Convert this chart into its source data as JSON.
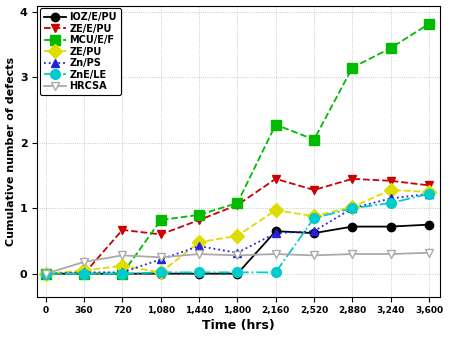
{
  "x": [
    0,
    360,
    720,
    1080,
    1440,
    1800,
    2160,
    2520,
    2880,
    3240,
    3600
  ],
  "series": {
    "IOZ/E/PU": [
      0,
      0,
      0,
      0,
      0,
      0,
      0.65,
      0.62,
      0.72,
      0.72,
      0.75
    ],
    "ZE/E/PU": [
      0,
      0,
      0.67,
      0.6,
      0.82,
      1.05,
      1.45,
      1.28,
      1.45,
      1.42,
      1.35
    ],
    "MCU/E/F": [
      0,
      0,
      0,
      0.82,
      0.9,
      1.08,
      2.28,
      2.05,
      3.15,
      3.45,
      3.82
    ],
    "ZE/PU": [
      0,
      0.05,
      0.12,
      0.02,
      0.48,
      0.58,
      0.97,
      0.88,
      1.02,
      1.28,
      1.25
    ],
    "Zn/PS": [
      0,
      0.02,
      0.02,
      0.22,
      0.42,
      0.32,
      0.62,
      0.65,
      1.0,
      1.15,
      1.22
    ],
    "ZnE/LE": [
      0,
      0,
      0,
      0.02,
      0.02,
      0.02,
      0.02,
      0.85,
      1.0,
      1.08,
      1.22
    ],
    "HRCSA": [
      0,
      0.18,
      0.28,
      0.25,
      0.3,
      0.28,
      0.3,
      0.28,
      0.3,
      0.3,
      0.32
    ]
  },
  "colors": {
    "IOZ/E/PU": "#000000",
    "ZE/E/PU": "#cc0000",
    "MCU/E/F": "#00bb00",
    "ZE/PU": "#dddd00",
    "Zn/PS": "#2222dd",
    "ZnE/LE": "#00cccc",
    "HRCSA": "#aaaaaa"
  },
  "linestyles": {
    "IOZ/E/PU": "-",
    "ZE/E/PU": "--",
    "MCU/E/F": "--",
    "ZE/PU": "--",
    "Zn/PS": ":",
    "ZnE/LE": "-.",
    "HRCSA": "-"
  },
  "markers": {
    "IOZ/E/PU": "o",
    "ZE/E/PU": "v",
    "MCU/E/F": "s",
    "ZE/PU": "D",
    "Zn/PS": "^",
    "ZnE/LE": "o",
    "HRCSA": "v"
  },
  "markerfacecolors": {
    "IOZ/E/PU": "#000000",
    "ZE/E/PU": "#cc0000",
    "MCU/E/F": "#00bb00",
    "ZE/PU": "#dddd00",
    "Zn/PS": "#2222dd",
    "ZnE/LE": "#00cccc",
    "HRCSA": "#ffffff"
  },
  "markersize": {
    "IOZ/E/PU": 6,
    "ZE/E/PU": 6,
    "MCU/E/F": 7,
    "ZE/PU": 7,
    "Zn/PS": 6,
    "ZnE/LE": 7,
    "HRCSA": 6
  },
  "xlabel": "Time (hrs)",
  "ylabel": "Cumulative number of defects",
  "xlim": [
    -80,
    3700
  ],
  "ylim": [
    -0.35,
    4.1
  ],
  "yticks": [
    0,
    1,
    2,
    3,
    4
  ],
  "xticks": [
    0,
    360,
    720,
    1080,
    1440,
    1800,
    2160,
    2520,
    2880,
    3240,
    3600
  ],
  "xtick_labels": [
    "0",
    "360",
    "720",
    "1,080",
    "1,440",
    "1,800",
    "2,160",
    "2,520",
    "2,880",
    "3,240",
    "3,600"
  ],
  "series_order": [
    "IOZ/E/PU",
    "ZE/E/PU",
    "MCU/E/F",
    "ZE/PU",
    "Zn/PS",
    "ZnE/LE",
    "HRCSA"
  ]
}
